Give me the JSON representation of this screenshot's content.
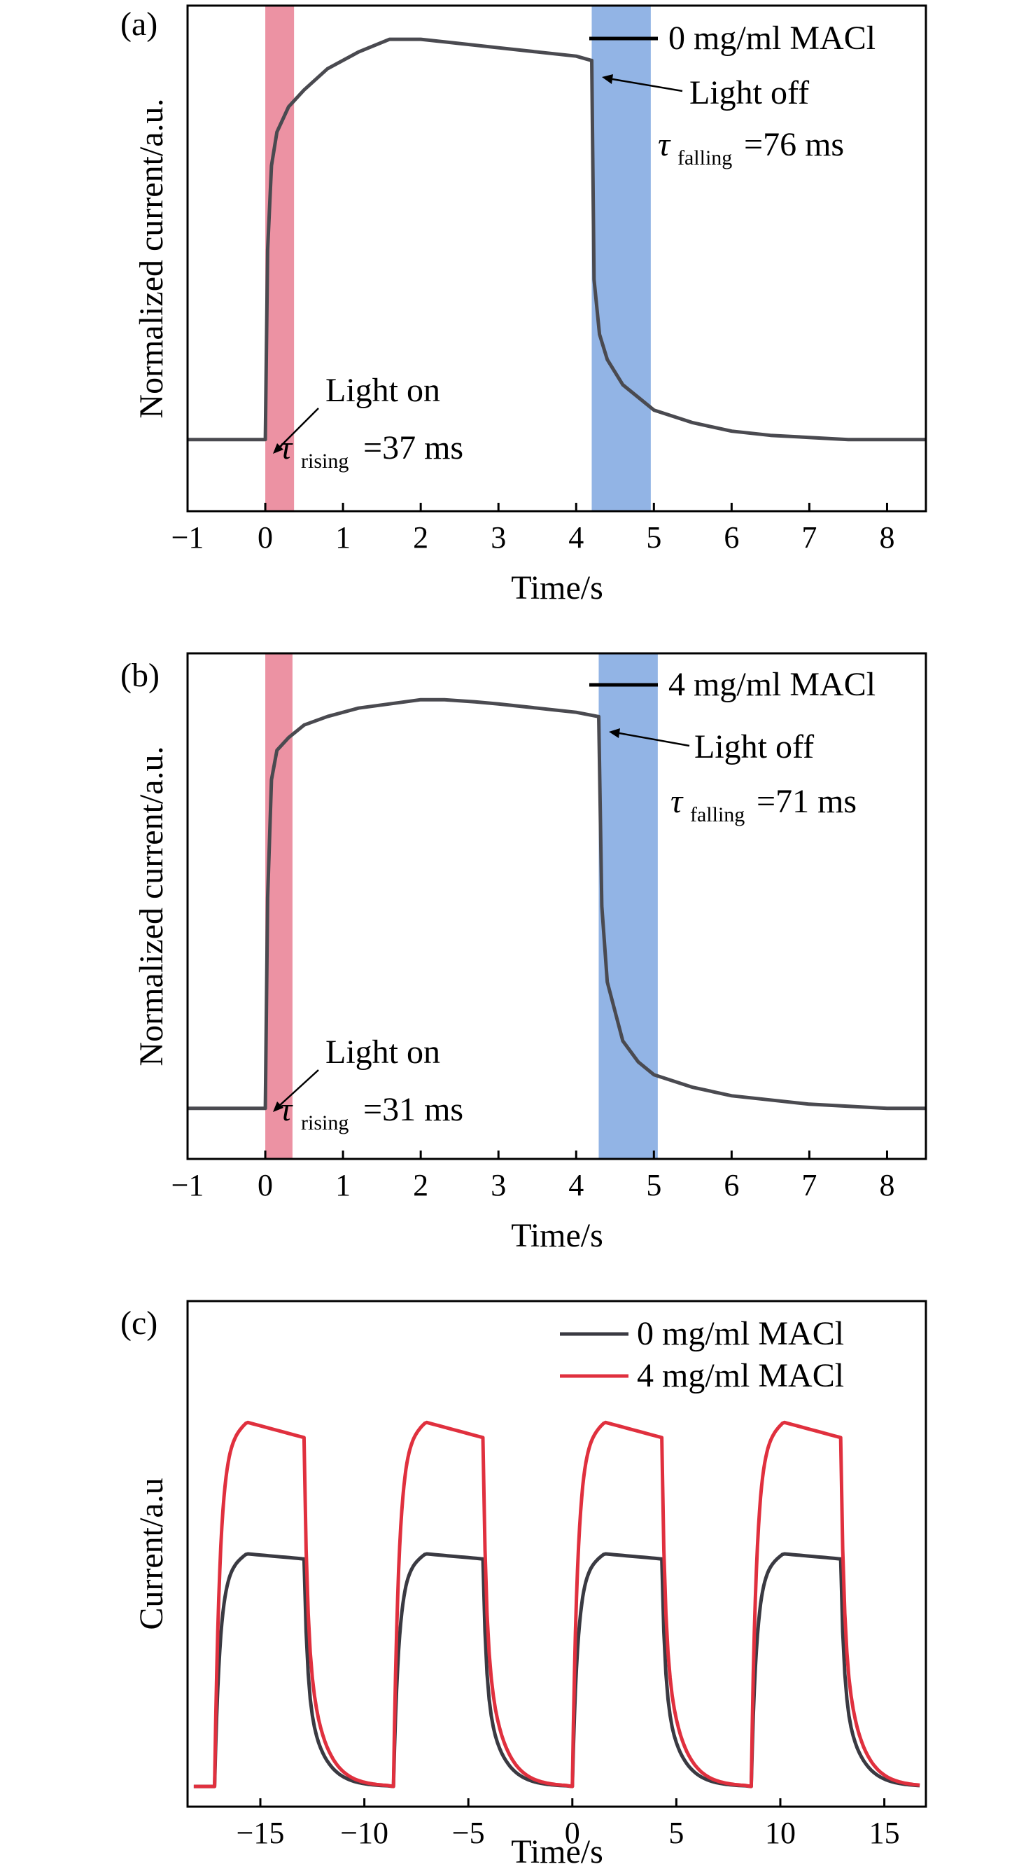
{
  "chart_data": [
    {
      "panel_label": "(a)",
      "type": "line",
      "xlabel": "Time/s",
      "ylabel": "Normalized current/a.u.",
      "xlim": [
        -1,
        8.5
      ],
      "ylim": [
        0,
        1.2
      ],
      "xticks": [
        -1,
        0,
        1,
        2,
        3,
        4,
        5,
        6,
        7,
        8
      ],
      "xtick_labels": [
        "−1",
        "0",
        "1",
        "2",
        "3",
        "4",
        "5",
        "6",
        "7",
        "8"
      ],
      "series": [
        {
          "name": "0 mg/ml MACl",
          "color": "#4a4a50",
          "x": [
            -1,
            -0.01,
            0.0,
            0.03,
            0.08,
            0.15,
            0.3,
            0.5,
            0.8,
            1.2,
            1.6,
            2.0,
            2.5,
            3.0,
            3.5,
            4.0,
            4.19,
            4.2,
            4.23,
            4.3,
            4.4,
            4.6,
            4.8,
            5.0,
            5.5,
            6.0,
            6.5,
            7.0,
            7.5,
            8.0,
            8.5
          ],
          "y": [
            0.17,
            0.17,
            0.17,
            0.62,
            0.82,
            0.9,
            0.96,
            1.0,
            1.05,
            1.09,
            1.12,
            1.12,
            1.11,
            1.1,
            1.09,
            1.08,
            1.07,
            1.07,
            0.55,
            0.42,
            0.36,
            0.3,
            0.27,
            0.24,
            0.21,
            0.19,
            0.18,
            0.175,
            0.17,
            0.17,
            0.17
          ]
        }
      ],
      "highlight_bands": [
        {
          "x0": 0.0,
          "x1": 0.37,
          "color": "#e04a66"
        },
        {
          "x0": 4.2,
          "x1": 4.96,
          "color": "#4a82d4"
        }
      ],
      "annotations": {
        "on_label": "Light on",
        "on_tau_symbol": "τ",
        "on_tau_sub": "rising",
        "on_tau_value": "=37 ms",
        "off_label": "Light off",
        "off_tau_symbol": "τ",
        "off_tau_sub": "falling",
        "off_tau_value": "=76 ms"
      }
    },
    {
      "panel_label": "(b)",
      "type": "line",
      "xlabel": "Time/s",
      "ylabel": "Normalized current/a.u.",
      "xlim": [
        -1,
        8.5
      ],
      "ylim": [
        0,
        1.2
      ],
      "xticks": [
        -1,
        0,
        1,
        2,
        3,
        4,
        5,
        6,
        7,
        8
      ],
      "xtick_labels": [
        "−1",
        "0",
        "1",
        "2",
        "3",
        "4",
        "5",
        "6",
        "7",
        "8"
      ],
      "series": [
        {
          "name": "4 mg/ml MACl",
          "color": "#4a4a50",
          "x": [
            -1,
            -0.01,
            0.0,
            0.03,
            0.08,
            0.15,
            0.3,
            0.5,
            0.8,
            1.2,
            1.6,
            2.0,
            2.3,
            2.7,
            3.0,
            3.5,
            4.0,
            4.28,
            4.29,
            4.33,
            4.4,
            4.6,
            4.8,
            5.0,
            5.5,
            6.0,
            6.5,
            7.0,
            7.5,
            8.0,
            8.5
          ],
          "y": [
            0.12,
            0.12,
            0.12,
            0.62,
            0.9,
            0.97,
            1.0,
            1.03,
            1.05,
            1.07,
            1.08,
            1.09,
            1.09,
            1.085,
            1.08,
            1.07,
            1.06,
            1.05,
            1.05,
            0.6,
            0.42,
            0.28,
            0.23,
            0.2,
            0.17,
            0.15,
            0.14,
            0.13,
            0.125,
            0.12,
            0.12
          ]
        }
      ],
      "highlight_bands": [
        {
          "x0": 0.0,
          "x1": 0.35,
          "color": "#e04a66"
        },
        {
          "x0": 4.29,
          "x1": 5.05,
          "color": "#4a82d4"
        }
      ],
      "annotations": {
        "on_label": "Light on",
        "on_tau_symbol": "τ",
        "on_tau_sub": "rising",
        "on_tau_value": "=31 ms",
        "off_label": "Light off",
        "off_tau_symbol": "τ",
        "off_tau_sub": "falling",
        "off_tau_value": "=71 ms"
      }
    },
    {
      "panel_label": "(c)",
      "type": "line",
      "xlabel": "Time/s",
      "ylabel": "Current/a.u",
      "xlim": [
        -18.5,
        17
      ],
      "ylim": [
        0,
        1.0
      ],
      "xticks": [
        -15,
        -10,
        -5,
        0,
        5,
        10,
        15
      ],
      "xtick_labels": [
        "−15",
        "−10",
        "−5",
        "0",
        "5",
        "10",
        "15"
      ],
      "period": 8.6,
      "first_on": -17.2,
      "on_duration": 4.3,
      "legend_position": "top-right",
      "series": [
        {
          "name": "0 mg/ml MACl",
          "color": "#3a3a42",
          "baseline": 0.04,
          "plateau_start": 0.46,
          "plateau_peak": 0.5,
          "plateau_end": 0.49
        },
        {
          "name": "4 mg/ml MACl",
          "color": "#e0303e",
          "baseline": 0.04,
          "plateau_start": 0.71,
          "plateau_peak": 0.76,
          "plateau_end": 0.73
        }
      ]
    }
  ]
}
